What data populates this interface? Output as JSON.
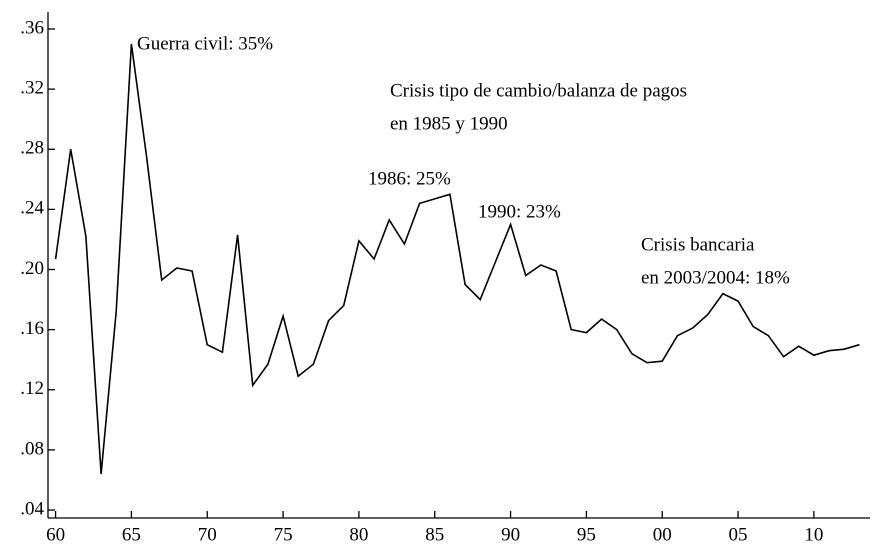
{
  "chart_data": {
    "type": "line",
    "x": [
      1960,
      1961,
      1962,
      1963,
      1964,
      1965,
      1966,
      1967,
      1968,
      1969,
      1970,
      1971,
      1972,
      1973,
      1974,
      1975,
      1976,
      1977,
      1978,
      1979,
      1980,
      1981,
      1982,
      1983,
      1984,
      1985,
      1986,
      1987,
      1988,
      1989,
      1990,
      1991,
      1992,
      1993,
      1994,
      1995,
      1996,
      1997,
      1998,
      1999,
      2000,
      2001,
      2002,
      2003,
      2004,
      2005,
      2006,
      2007,
      2008,
      2009,
      2010,
      2011,
      2012,
      2013
    ],
    "values": [
      0.207,
      0.28,
      0.222,
      0.064,
      0.172,
      0.35,
      0.275,
      0.193,
      0.201,
      0.199,
      0.15,
      0.145,
      0.223,
      0.123,
      0.137,
      0.169,
      0.129,
      0.137,
      0.166,
      0.176,
      0.219,
      0.207,
      0.233,
      0.217,
      0.244,
      0.247,
      0.25,
      0.19,
      0.18,
      0.205,
      0.23,
      0.196,
      0.203,
      0.199,
      0.16,
      0.158,
      0.167,
      0.16,
      0.144,
      0.138,
      0.139,
      0.156,
      0.161,
      0.17,
      0.184,
      0.179,
      0.162,
      0.156,
      0.142,
      0.149,
      0.143,
      0.146,
      0.147,
      0.15
    ],
    "color": "#000000",
    "xlim": [
      1959.5,
      2013.7
    ],
    "xticks": [
      {
        "value": 1960,
        "label": "60"
      },
      {
        "value": 1965,
        "label": "65"
      },
      {
        "value": 1970,
        "label": "70"
      },
      {
        "value": 1975,
        "label": "75"
      },
      {
        "value": 1980,
        "label": "80"
      },
      {
        "value": 1985,
        "label": "85"
      },
      {
        "value": 1990,
        "label": "90"
      },
      {
        "value": 1995,
        "label": "95"
      },
      {
        "value": 2000,
        "label": "00"
      },
      {
        "value": 2005,
        "label": "05"
      },
      {
        "value": 2010,
        "label": "10"
      }
    ],
    "ylim": [
      0.0347,
      0.3713
    ],
    "yticks": [
      {
        "value": 0.04,
        "label": ".04"
      },
      {
        "value": 0.08,
        "label": ".08"
      },
      {
        "value": 0.12,
        "label": ".12"
      },
      {
        "value": 0.16,
        "label": ".16"
      },
      {
        "value": 0.2,
        "label": ".20"
      },
      {
        "value": 0.24,
        "label": ".24"
      },
      {
        "value": 0.28,
        "label": ".28"
      },
      {
        "value": 0.32,
        "label": ".32"
      },
      {
        "value": 0.36,
        "label": ".36"
      }
    ],
    "annotations": [
      [
        "Guerra civil: 35%"
      ],
      [
        "Crisis tipo de cambio/balanza de pagos",
        "en 1985 y 1990"
      ],
      [
        "1986: 25%"
      ],
      [
        "1990: 23%"
      ],
      [
        "Crisis bancaria",
        "en 2003/2004: 18%"
      ]
    ]
  }
}
